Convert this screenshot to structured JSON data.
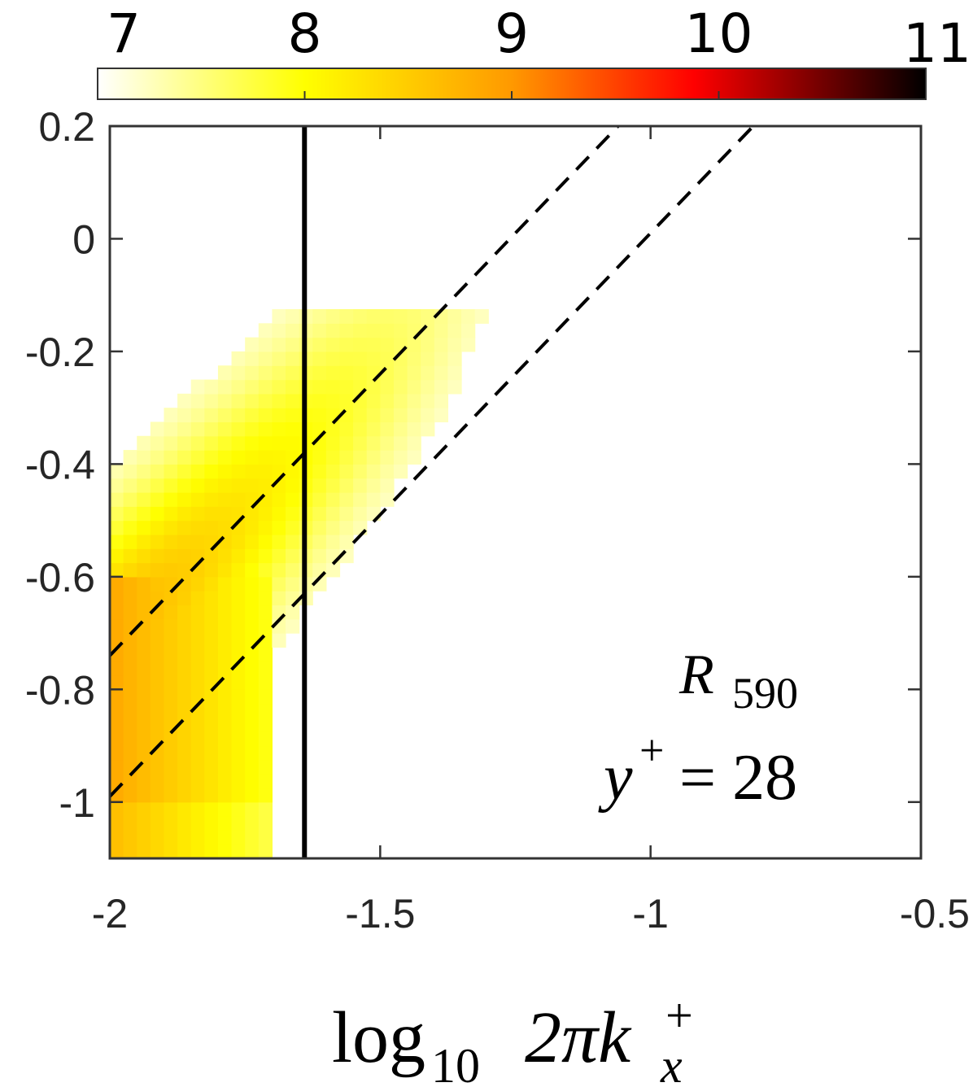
{
  "chart_data": {
    "type": "heatmap",
    "title": "",
    "xlabel": {
      "main": "log",
      "sub": "10",
      "mid": "2πk",
      "sup": "+",
      "subscript": "x"
    },
    "ylabel": "",
    "xlim": [
      -2,
      -0.5
    ],
    "ylim": [
      -1.1,
      0.2
    ],
    "x_ticks": [
      -2,
      -1.5,
      -1,
      -0.5
    ],
    "x_tick_labels": [
      "-2",
      "-1.5",
      "-1",
      "-0.5"
    ],
    "y_ticks": [
      0.2,
      0,
      -0.2,
      -0.4,
      -0.6,
      -0.8,
      -1
    ],
    "y_tick_labels": [
      "0.2",
      "0",
      "-0.2",
      "-0.4",
      "-0.6",
      "-0.8",
      "-1"
    ],
    "grid": false,
    "colorbar": {
      "position": "top",
      "range": [
        7,
        11
      ],
      "ticks": [
        7,
        8,
        9,
        10,
        11
      ],
      "tick_labels": [
        "7",
        "8",
        "9",
        "10",
        "11"
      ],
      "colormap": "hot-reversed",
      "colors": [
        "#ffffff",
        "#ffff00",
        "#ff9900",
        "#ff0000",
        "#000000"
      ]
    },
    "heatmap_model": {
      "description": "colour value as a function of (x, y); nonzero band between the dashed lines",
      "band_slope": 1.0,
      "cells": {
        "dx": 0.025,
        "dy": 0.025
      }
    },
    "vertical_line": {
      "x": -1.64,
      "style": "solid",
      "color": "#000000"
    },
    "dashed_lines": [
      {
        "x0": -2.0,
        "y0": -0.74,
        "x1": -1.06,
        "y1": 0.2
      },
      {
        "x0": -2.0,
        "y0": -0.99,
        "x1": -0.81,
        "y1": 0.2
      }
    ],
    "annotation": {
      "line1_main": "R",
      "line1_sub": "590",
      "line2_main": "y",
      "line2_sup": "+",
      "line2_rest": " = 28"
    }
  }
}
